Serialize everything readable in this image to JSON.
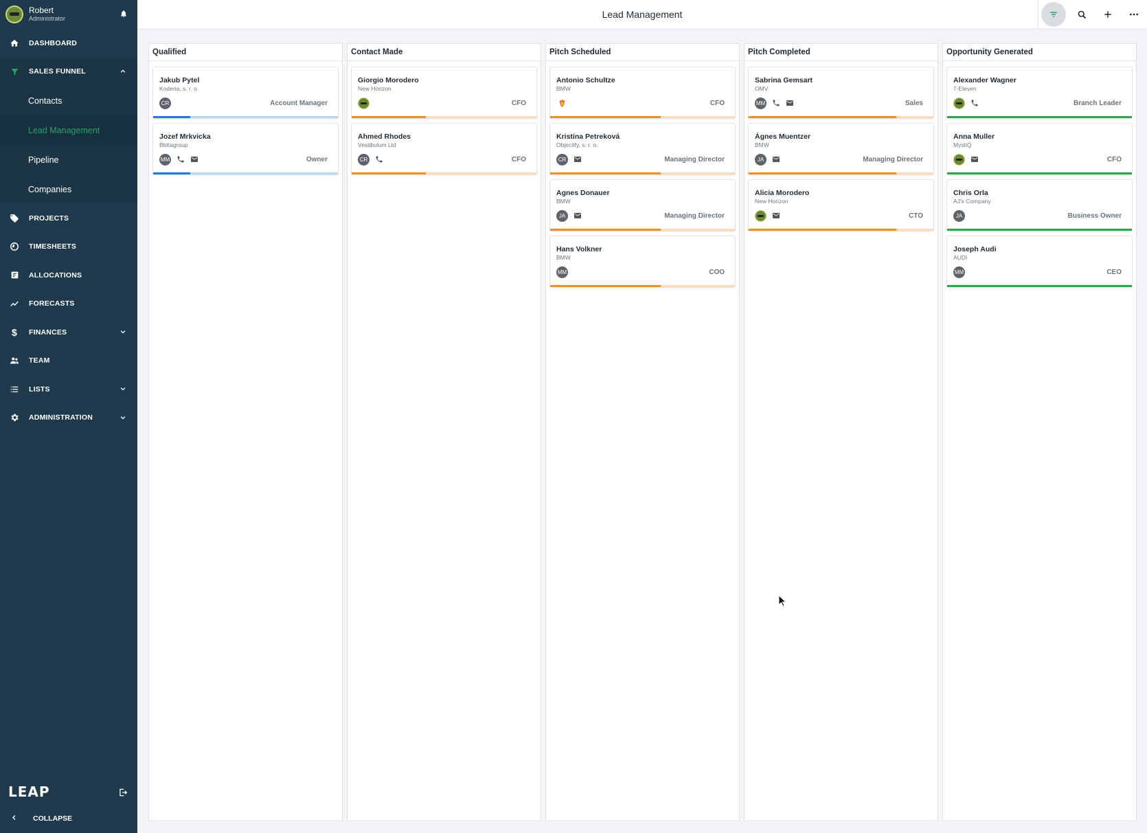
{
  "user": {
    "name": "Robert",
    "role": "Administrator"
  },
  "nav": {
    "dashboard": "DASHBOARD",
    "sales_funnel": "SALES FUNNEL",
    "sub": [
      "Contacts",
      "Lead Management",
      "Pipeline",
      "Companies"
    ],
    "projects": "PROJECTS",
    "timesheets": "TIMESHEETS",
    "allocations": "ALLOCATIONS",
    "forecasts": "FORECASTS",
    "finances": "FINANCES",
    "team": "TEAM",
    "lists": "LISTS",
    "administration": "ADMINISTRATION",
    "collapse": "COLLAPSE"
  },
  "logo": "LEAP",
  "header": {
    "title": "Lead Management"
  },
  "colors": {
    "blue": "#1e7ad6",
    "blue_light": "#b9d6f2",
    "orange": "#f0901e",
    "orange_light": "#fbdcb8",
    "green": "#2aa84a",
    "active_nav": "#27a36b"
  },
  "columns": [
    {
      "title": "Qualified",
      "color": "blue",
      "progress": 0.2,
      "cards": [
        {
          "name": "Jakub Pytel",
          "company": "Koderia, s. r. o.",
          "avatar": "CR",
          "phone": false,
          "email": false,
          "role": "Account Manager"
        },
        {
          "name": "Jozef Mrkvicka",
          "company": "Bbttagroup",
          "avatar": "MM",
          "phone": true,
          "email": true,
          "role": "Owner"
        }
      ]
    },
    {
      "title": "Contact Made",
      "color": "orange",
      "progress": 0.4,
      "cards": [
        {
          "name": "Giorgio Morodero",
          "company": "New Horizon",
          "avatar": "photo",
          "phone": false,
          "email": false,
          "role": "CFO"
        },
        {
          "name": "Ahmed Rhodes",
          "company": "Vestibulum Ltd",
          "avatar": "CR",
          "phone": true,
          "email": false,
          "role": "CFO"
        }
      ]
    },
    {
      "title": "Pitch Scheduled",
      "color": "orange",
      "progress": 0.6,
      "cards": [
        {
          "name": "Antonio Schultze",
          "company": "BMW",
          "avatar": "fox",
          "phone": false,
          "email": false,
          "role": "CFO"
        },
        {
          "name": "Kristína Petreková",
          "company": "Objectify, s. r. o.",
          "avatar": "CR",
          "phone": false,
          "email": true,
          "role": "Managing Director"
        },
        {
          "name": "Agnes Donauer",
          "company": "BMW",
          "avatar": "JA",
          "phone": false,
          "email": true,
          "role": "Managing Director"
        },
        {
          "name": "Hans Volkner",
          "company": "BMW",
          "avatar": "MM",
          "phone": false,
          "email": false,
          "role": "COO"
        }
      ]
    },
    {
      "title": "Pitch Completed",
      "color": "orange",
      "progress": 0.8,
      "cards": [
        {
          "name": "Sabrina Gemsart",
          "company": "OMV",
          "avatar": "MM",
          "phone": true,
          "email": true,
          "role": "Sales"
        },
        {
          "name": "Ágnes Muentzer",
          "company": "BMW",
          "avatar": "JA",
          "phone": false,
          "email": true,
          "role": "Managing Director"
        },
        {
          "name": "Alicia Morodero",
          "company": "New Horizon",
          "avatar": "photo",
          "phone": false,
          "email": true,
          "role": "CTO"
        }
      ]
    },
    {
      "title": "Opportunity Generated",
      "color": "green",
      "progress": 1.0,
      "cards": [
        {
          "name": "Alexander Wagner",
          "company": "7-Eleven",
          "avatar": "photo",
          "phone": true,
          "email": false,
          "role": "Branch Leader"
        },
        {
          "name": "Anna Muller",
          "company": "MystiQ",
          "avatar": "photo",
          "phone": false,
          "email": true,
          "role": "CFO"
        },
        {
          "name": "Chris Orla",
          "company": "AJ's Company",
          "avatar": "JA",
          "phone": false,
          "email": false,
          "role": "Business Owner"
        },
        {
          "name": "Joseph Audi",
          "company": "AUDI",
          "avatar": "MM",
          "phone": false,
          "email": false,
          "role": "CEO"
        }
      ]
    }
  ]
}
